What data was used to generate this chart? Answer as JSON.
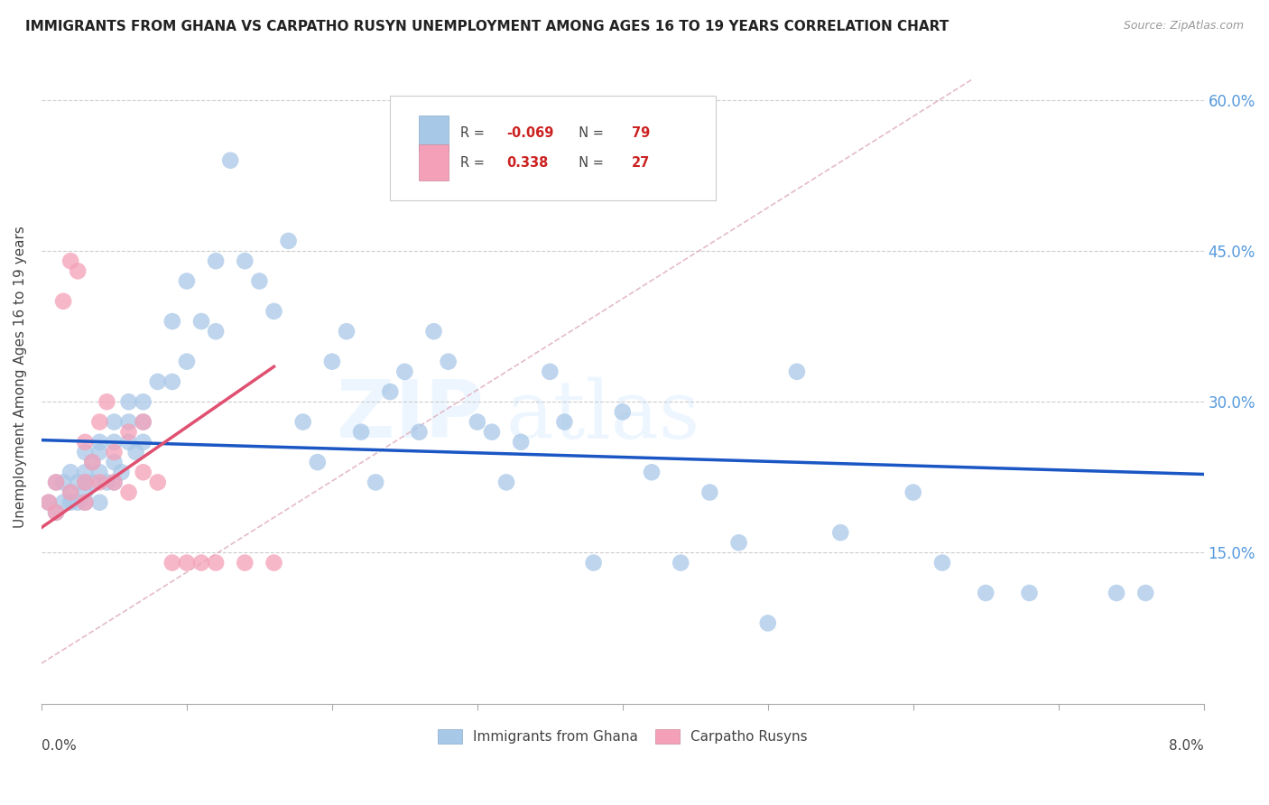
{
  "title": "IMMIGRANTS FROM GHANA VS CARPATHO RUSYN UNEMPLOYMENT AMONG AGES 16 TO 19 YEARS CORRELATION CHART",
  "source": "Source: ZipAtlas.com",
  "ylabel": "Unemployment Among Ages 16 to 19 years",
  "xlim": [
    0.0,
    0.08
  ],
  "ylim": [
    0.0,
    0.65
  ],
  "ghana_R": "-0.069",
  "ghana_N": "79",
  "carpatho_R": "0.338",
  "carpatho_N": "27",
  "ghana_color": "#a8c8e8",
  "carpatho_color": "#f4a0b8",
  "ghana_line_color": "#1a56c4",
  "carpatho_line_color": "#e05070",
  "ref_line_color": "#e0b0c0",
  "ghana_scatter_x": [
    0.0005,
    0.001,
    0.001,
    0.0015,
    0.0015,
    0.002,
    0.002,
    0.002,
    0.0025,
    0.0025,
    0.003,
    0.003,
    0.003,
    0.003,
    0.003,
    0.0035,
    0.0035,
    0.004,
    0.004,
    0.004,
    0.004,
    0.0045,
    0.005,
    0.005,
    0.005,
    0.005,
    0.0055,
    0.006,
    0.006,
    0.006,
    0.0065,
    0.007,
    0.007,
    0.007,
    0.008,
    0.009,
    0.009,
    0.01,
    0.01,
    0.011,
    0.012,
    0.012,
    0.013,
    0.014,
    0.015,
    0.016,
    0.017,
    0.018,
    0.019,
    0.02,
    0.021,
    0.022,
    0.023,
    0.024,
    0.025,
    0.026,
    0.027,
    0.028,
    0.03,
    0.031,
    0.032,
    0.033,
    0.035,
    0.036,
    0.038,
    0.04,
    0.042,
    0.044,
    0.046,
    0.048,
    0.05,
    0.052,
    0.055,
    0.06,
    0.062,
    0.065,
    0.068,
    0.074,
    0.076
  ],
  "ghana_scatter_y": [
    0.2,
    0.22,
    0.19,
    0.22,
    0.2,
    0.21,
    0.2,
    0.23,
    0.22,
    0.2,
    0.25,
    0.23,
    0.21,
    0.2,
    0.22,
    0.24,
    0.22,
    0.26,
    0.25,
    0.23,
    0.2,
    0.22,
    0.28,
    0.26,
    0.24,
    0.22,
    0.23,
    0.3,
    0.28,
    0.26,
    0.25,
    0.3,
    0.28,
    0.26,
    0.32,
    0.38,
    0.32,
    0.42,
    0.34,
    0.38,
    0.44,
    0.37,
    0.54,
    0.44,
    0.42,
    0.39,
    0.46,
    0.28,
    0.24,
    0.34,
    0.37,
    0.27,
    0.22,
    0.31,
    0.33,
    0.27,
    0.37,
    0.34,
    0.28,
    0.27,
    0.22,
    0.26,
    0.33,
    0.28,
    0.14,
    0.29,
    0.23,
    0.14,
    0.21,
    0.16,
    0.08,
    0.33,
    0.17,
    0.21,
    0.14,
    0.11,
    0.11,
    0.11,
    0.11
  ],
  "carpatho_scatter_x": [
    0.0005,
    0.001,
    0.001,
    0.0015,
    0.002,
    0.002,
    0.0025,
    0.003,
    0.003,
    0.003,
    0.0035,
    0.004,
    0.004,
    0.0045,
    0.005,
    0.005,
    0.006,
    0.006,
    0.007,
    0.007,
    0.008,
    0.009,
    0.01,
    0.011,
    0.012,
    0.014,
    0.016
  ],
  "carpatho_scatter_y": [
    0.2,
    0.22,
    0.19,
    0.4,
    0.44,
    0.21,
    0.43,
    0.26,
    0.22,
    0.2,
    0.24,
    0.28,
    0.22,
    0.3,
    0.25,
    0.22,
    0.27,
    0.21,
    0.28,
    0.23,
    0.22,
    0.14,
    0.14,
    0.14,
    0.14,
    0.14,
    0.14
  ],
  "ghana_trend_x": [
    0.0,
    0.08
  ],
  "ghana_trend_y": [
    0.262,
    0.228
  ],
  "carpatho_trend_x": [
    0.0,
    0.016
  ],
  "carpatho_trend_y": [
    0.175,
    0.335
  ],
  "ref_line_x": [
    0.0,
    0.064
  ],
  "ref_line_y": [
    0.04,
    0.62
  ]
}
